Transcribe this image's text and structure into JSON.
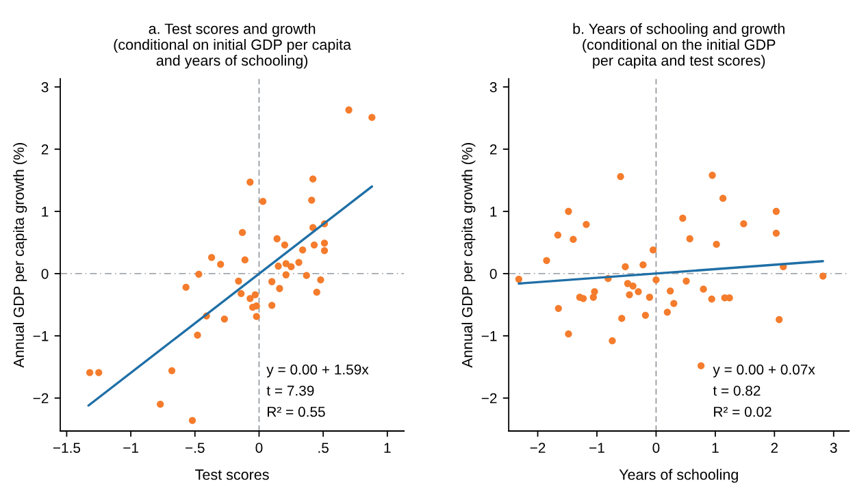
{
  "chart_data": [
    {
      "type": "scatter",
      "title": "a. Test scores and growth\n(conditional on initial GDP per capita\nand years of schooling)",
      "xlabel": "Test scores",
      "ylabel": "Annual GDP per capita growth (%)",
      "xlim": [
        -1.55,
        1.13
      ],
      "ylim": [
        -2.53,
        3.13
      ],
      "xticks": [
        {
          "value": -1.5,
          "label": "−1.5"
        },
        {
          "value": -1,
          "label": "−1"
        },
        {
          "value": -0.5,
          "label": "−.5"
        },
        0,
        {
          "value": 0.5,
          "label": ".5"
        },
        1
      ],
      "yticks": [
        -2,
        -1,
        0,
        1,
        2,
        3
      ],
      "grid": false,
      "ref_lines": [
        {
          "axis": "x",
          "value": 0,
          "color": "#8e959c",
          "line_style": "dashed"
        },
        {
          "axis": "y",
          "value": 0,
          "color": "#a3a8ad",
          "line_style": "dashed"
        }
      ],
      "annotations": [
        "y = 0.00 + 1.59x",
        "t = 7.39",
        "R² = 0.55"
      ],
      "series": [
        {
          "marker": "circle",
          "color": "#f47c2c",
          "x": [
            -0.07,
            0.03,
            -0.13,
            -0.37,
            -0.3,
            -0.11,
            -0.47,
            -0.57,
            -0.16,
            -0.14,
            -0.07,
            -0.03,
            -0.05,
            -0.02,
            -0.02,
            -0.41,
            -0.27,
            -0.48,
            -0.68,
            -1.32,
            -1.25,
            -0.77,
            -0.52,
            0.7,
            0.88,
            0.42,
            0.41,
            0.51,
            0.42,
            0.14,
            0.2,
            0.43,
            0.51,
            0.51,
            0.34,
            0.31,
            0.21,
            0.25,
            0.15,
            0.21,
            0.37,
            0.48,
            0.1,
            0.16,
            0.45,
            0.1
          ],
          "values": [
            1.47,
            1.16,
            0.66,
            0.26,
            0.15,
            0.22,
            -0.01,
            -0.22,
            -0.12,
            -0.32,
            -0.4,
            -0.34,
            -0.54,
            -0.52,
            -0.69,
            -0.68,
            -0.73,
            -0.99,
            -1.56,
            -1.59,
            -1.59,
            -2.1,
            -2.36,
            2.63,
            2.51,
            1.52,
            1.18,
            0.8,
            0.74,
            0.56,
            0.46,
            0.46,
            0.49,
            0.37,
            0.38,
            0.18,
            0.16,
            0.11,
            0.12,
            -0.02,
            -0.03,
            -0.1,
            -0.13,
            -0.24,
            -0.3,
            -0.51
          ]
        },
        {
          "type": "line",
          "marker": "none",
          "color": "#1f6fa6",
          "x": [
            -1.33,
            0.88
          ],
          "values": [
            -2.12,
            1.4
          ]
        }
      ]
    },
    {
      "type": "scatter",
      "title": "b. Years of schooling and growth\n(conditional on the initial GDP\nper capita and test scores)",
      "xlabel": "Years of schooling",
      "ylabel": "Annual GDP per capita growth (%)",
      "xlim": [
        -2.49,
        3.26
      ],
      "ylim": [
        -2.53,
        3.13
      ],
      "xticks": [
        -2,
        -1,
        0,
        1,
        2,
        3
      ],
      "yticks": [
        -2,
        -1,
        0,
        1,
        2,
        3
      ],
      "grid": false,
      "ref_lines": [
        {
          "axis": "x",
          "value": 0,
          "color": "#8e959c",
          "line_style": "dashed"
        },
        {
          "axis": "y",
          "value": 0,
          "color": "#a3a8ad",
          "line_style": "dashed"
        }
      ],
      "annotations": [
        "y = 0.00 + 0.07x",
        "t = 0.82",
        "R² = 0.02"
      ],
      "series": [
        {
          "marker": "circle",
          "color": "#f47c2c",
          "x": [
            -2.32,
            -1.85,
            -1.66,
            -1.48,
            -1.4,
            -1.18,
            -1.65,
            -1.48,
            -1.29,
            -1.23,
            -1.04,
            -1.06,
            -0.81,
            -0.74,
            -0.6,
            -0.58,
            -0.52,
            -0.48,
            -0.39,
            -0.45,
            -0.3,
            -0.22,
            -0.18,
            -0.11,
            -0.05,
            0.0,
            0.24,
            0.3,
            0.19,
            0.51,
            0.45,
            0.57,
            0.8,
            0.95,
            1.02,
            0.94,
            1.13,
            1.16,
            1.24,
            0.76,
            1.48,
            2.03,
            2.03,
            2.15,
            2.08,
            2.82
          ],
          "values": [
            -0.09,
            0.21,
            0.62,
            1.0,
            0.55,
            0.79,
            -0.56,
            -0.97,
            -0.38,
            -0.4,
            -0.29,
            -0.38,
            -0.08,
            -1.08,
            1.56,
            -0.72,
            0.11,
            -0.16,
            -0.2,
            -0.34,
            -0.29,
            0.14,
            -0.67,
            -0.38,
            0.38,
            -0.1,
            -0.28,
            -0.48,
            -0.62,
            -0.12,
            0.89,
            0.56,
            -0.25,
            1.58,
            0.47,
            -0.41,
            1.21,
            -0.39,
            -0.39,
            -1.48,
            0.8,
            1.0,
            0.65,
            0.11,
            -0.74,
            -0.04
          ]
        },
        {
          "type": "line",
          "marker": "none",
          "color": "#1f6fa6",
          "x": [
            -2.32,
            2.82
          ],
          "values": [
            -0.16,
            0.2
          ]
        }
      ]
    }
  ]
}
